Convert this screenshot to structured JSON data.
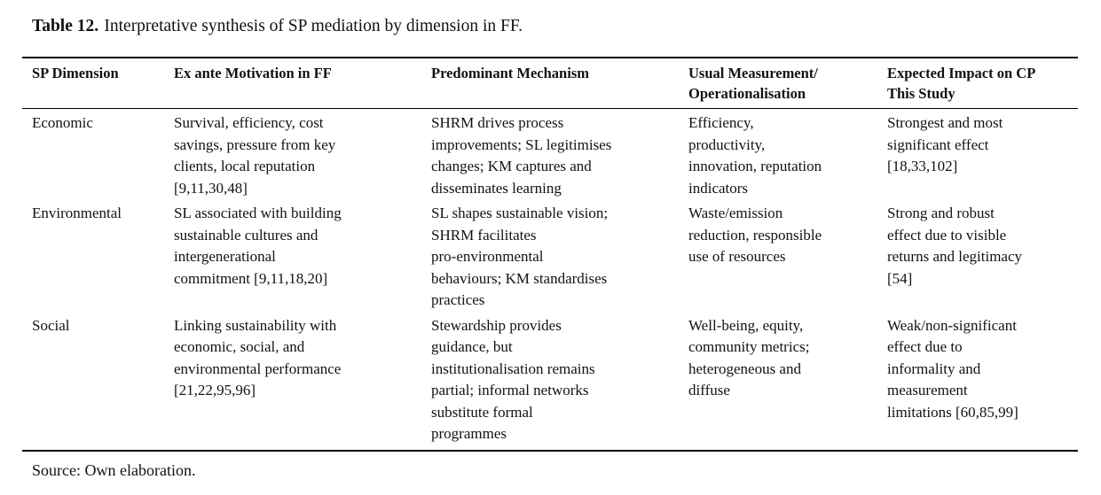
{
  "title": {
    "label": "Table 12.",
    "text": "Interpretative synthesis of SP mediation by dimension in FF."
  },
  "table": {
    "headers": [
      "SP Dimension",
      "Ex ante Motivation in FF",
      "Predominant Mechanism",
      "Usual Measurement/\nOperationalisation",
      "Expected Impact on CP\nThis Study"
    ],
    "rows": [
      {
        "cells": [
          "Economic",
          "Survival, efficiency, cost\nsavings, pressure from key\nclients, local reputation\n[9,11,30,48]",
          "SHRM drives process\nimprovements; SL legitimises\nchanges; KM captures and\ndisseminates learning",
          "Efficiency,\nproductivity,\ninnovation, reputation\nindicators",
          "Strongest and most\nsignificant effect\n[18,33,102]"
        ]
      },
      {
        "cells": [
          "Environmental",
          "SL associated with building\nsustainable cultures and\nintergenerational\ncommitment [9,11,18,20]",
          "SL shapes sustainable vision;\nSHRM facilitates\npro-environmental\nbehaviours; KM standardises\npractices",
          "Waste/emission\nreduction, responsible\nuse of resources",
          "Strong and robust\neffect due to visible\nreturns and legitimacy\n[54]"
        ]
      },
      {
        "cells": [
          "Social",
          "Linking sustainability with\neconomic, social, and\nenvironmental performance\n[21,22,95,96]",
          "Stewardship provides\nguidance, but\ninstitutionalisation remains\npartial; informal networks\nsubstitute formal\nprogrammes",
          "Well-being, equity,\ncommunity metrics;\nheterogeneous and\ndiffuse",
          "Weak/non-significant\neffect due to\ninformality and\nmeasurement\nlimitations [60,85,99]"
        ]
      }
    ]
  },
  "footer": {
    "source": "Source: Own elaboration."
  },
  "colors": {
    "text": "#121212",
    "background": "#ffffff",
    "rule": "#000000"
  }
}
